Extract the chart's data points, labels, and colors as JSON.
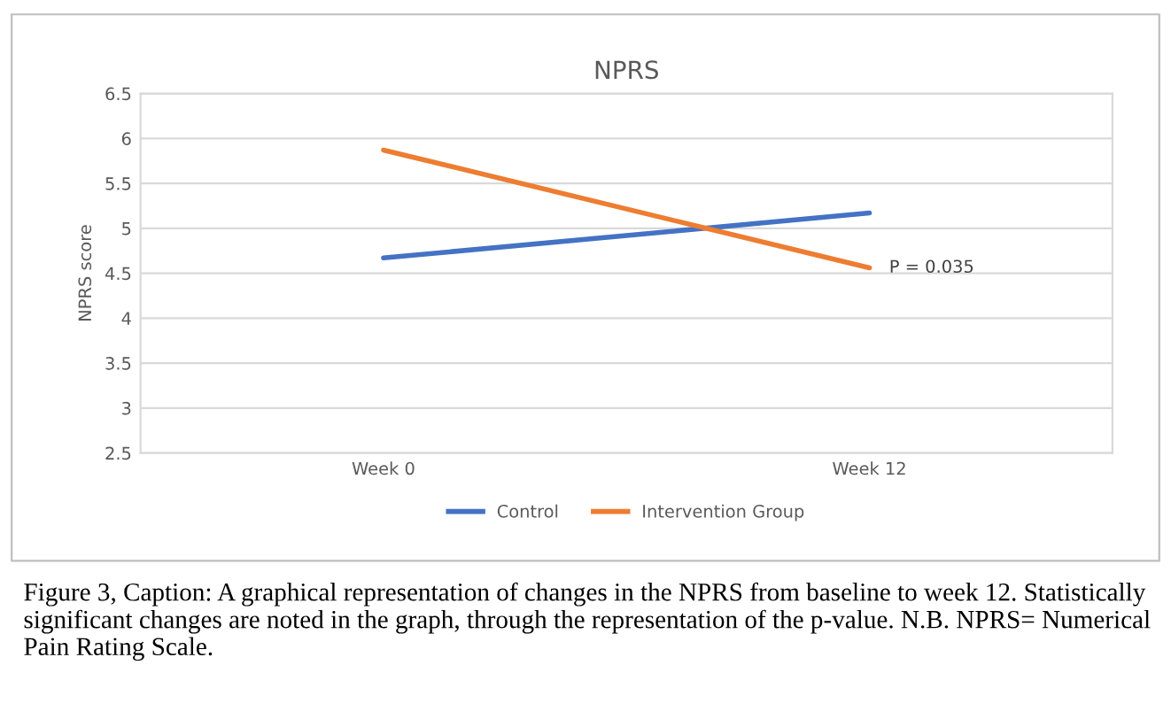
{
  "chart_data": {
    "type": "line",
    "title": "NPRS",
    "ylabel": "NPRS score",
    "categories": [
      "Week 0",
      "Week 12"
    ],
    "series": [
      {
        "name": "Control",
        "color": "#4472c4",
        "values": [
          4.67,
          5.17
        ]
      },
      {
        "name": "Intervention Group",
        "color": "#ed7d31",
        "values": [
          5.87,
          4.56
        ]
      }
    ],
    "ylim": [
      2.5,
      6.5
    ],
    "yticks": [
      2.5,
      3,
      3.5,
      4,
      4.5,
      5,
      5.5,
      6,
      6.5
    ],
    "grid": "y",
    "legend": "bottom",
    "marker": "none",
    "line_style": "solid",
    "annotations": [
      {
        "text": "P = 0.035",
        "x": "Week 12",
        "y": 4.56
      },
      "Figure 3, Caption: A graphical representation of changes in the NPRS from baseline to week 12. Statistically significant changes are noted in the graph, through the representation of the p-value. N.B. NPRS= Numerical Pain Rating Scale."
    ]
  }
}
